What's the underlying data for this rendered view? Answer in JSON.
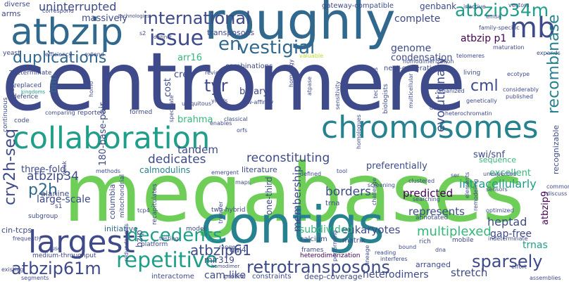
{
  "colors": {
    "background": "#ffffff",
    "palette": [
      "#440154",
      "#482878",
      "#3e4a89",
      "#31688e",
      "#26828e",
      "#1f9e89",
      "#35b779",
      "#6ece58",
      "#b5de2b"
    ]
  },
  "words": {
    "centromere": "centromere",
    "megabases": "megabases",
    "roughly": "roughly",
    "contigs": "contigs",
    "collaboration": "collaboration",
    "chromosomes": "chromosomes",
    "atbzip": "atbzip",
    "largest": "largest",
    "mb": "mb",
    "atbzip34m": "atbzip34m",
    "international": "international",
    "issue": "issue",
    "repetitive": "repetitive",
    "retrotransposons": "retrotransposons",
    "decedents": "decedents",
    "duplications": "duplications",
    "vestigial": "vestigial",
    "en": "en",
    "recombinase": "recombinase",
    "cry2h_seq": "cry2h-seq",
    "atbzip61m": "atbzip61m",
    "atbzip61": "atbzip61",
    "sparsely": "sparsely",
    "p2h": "p2h",
    "cml": "cml",
    "tyr": "tyr",
    "dedicates": "dedicates",
    "uninterrupted": "uninterrupted",
    "atbzip34": "atbzip34",
    "reconstituting": "reconstituting",
    "heptad": "heptad",
    "multiplexed": "multiplexed",
    "eukaryotes": "eukaryotes",
    "borders": "borders",
    "evolutionary": "evolutionary",
    "intracellularly": "intracellularly",
    "membership": "membership",
    "complete": "complete",
    "genome": "genome",
    "condensation": "condensation",
    "atbzip_p1": "atbzip p1",
    "atbzip9": "atbzip9",
    "recognizable": "recognizable",
    "tandem": "tandem",
    "brahma": "brahma",
    "predicted": "predicted",
    "represents": "represents",
    "subdivided": "subdivided",
    "initiative": "initiative",
    "large_scale": "large-scale",
    "three_fold": "three-fold",
    "calmodulins": "calmodulins",
    "cam_like": "cam-like",
    "stretch": "stretch",
    "heterodimers": "heterodimers",
    "trnas": "trnas",
    "gap_free": "gap-free",
    "swi_snf": "swi/snf",
    "excellent": "excellent",
    "preferentially": "preferentially",
    "sequence": "sequence",
    "arr16": "arr16",
    "cost": "cost",
    "cre": "cre",
    "transposons": "transposons",
    "genbank": "genbank",
    "gateway_compatible": "gateway-compatible",
    "next_generation": "next-generation",
    "combinations": "combinations",
    "binary": "binary",
    "one_third": "one-third",
    "base_pair_180": "180-base-pair",
    "mir319": "mir319",
    "gal4": "gal4",
    "bzip": "bzip",
    "columbia": "columbia",
    "alanine": "alanine",
    "brm": "brm",
    "cin_tcps": "cin-tcps",
    "s1": "s1",
    "subgroup": "subgroup",
    "literature": "literature",
    "trna": "trna",
    "constraints": "constraints",
    "deep_coverage": "deep-coverage",
    "arranged": "arranged",
    "interactome": "interactome",
    "medium_throughput": "medium-throughput",
    "segments": "segments",
    "existing": "existing",
    "continuous": "continuous",
    "prepared": "prepared",
    "defence": "defence",
    "determinate": "determinate",
    "replaced": "replaced",
    "yeast": "yeast",
    "arms": "arms",
    "diverse": "diverse",
    "correspond": "correspond",
    "massively": "massively",
    "efficiency": "efficiency",
    "extend": "extend",
    "technologies": "technologies",
    "homo": "homo",
    "kingdoms": "kingdoms",
    "code": "code",
    "comparing": "comparing",
    "frequently": "frequently",
    "fuse": "fuse",
    "weak": "weak",
    "methods": "methods",
    "mitochondrial": "mitochondrial",
    "recapitulates": "recapitulates",
    "emergent": "emergent",
    "two_hybrid": "two-hybrid",
    "tcp4": "tcp4",
    "platform": "platform",
    "testing": "testing",
    "redundancies": "redundancies",
    "model": "model",
    "range": "range",
    "homodimer": "homodimer",
    "proline": "proline",
    "calcium": "calcium",
    "frames": "frames",
    "matrix": "matrix",
    "lineage": "lineage",
    "reading": "reading",
    "bound": "bound",
    "rich": "rich",
    "dna": "dna",
    "mobile": "mobile",
    "indeterminate": "indeterminate",
    "effort": "effort",
    "assemblies": "assemblies",
    "heterodimerization": "heterodimerization",
    "interferes": "interferes",
    "performing": "performing",
    "annotated": "annotated",
    "optimized": "optimized",
    "discuss": "discuss",
    "common": "common",
    "sensors": "sensors",
    "ser": "ser",
    "unexpected": "unexpected",
    "clustered": "clustered",
    "searching": "searching",
    "screening": "screening",
    "defined": "defined",
    "heterochromatin": "heterochromatin",
    "density": "density",
    "published": "published",
    "considerably": "considerably",
    "genetically": "genetically",
    "organized": "organized",
    "living": "living",
    "ecotype": "ecotype",
    "multicellular": "multicellular",
    "homologues": "homologues",
    "biologists": "biologists",
    "techniques": "techniques",
    "sensitivity": "sensitivity",
    "atpase": "atpase",
    "homology": "homology",
    "telomeres": "telomeres",
    "maturation": "maturation",
    "expands": "expands",
    "homodimerization": "homodimerization",
    "inactive": "inactive",
    "emsa": "emsa",
    "vectors": "vectors",
    "family_specific": "family-specific",
    "valuable": "valuable",
    "review": "review",
    "low_affinity": "low-affinity",
    "ubiquitous": "ubiquitous",
    "yields": "yields",
    "classical": "classical",
    "enables": "enables",
    "orfs": "orfs",
    "formed": "formed",
    "reported": "reported",
    "speculate": "speculate",
    "protoplast": "protoplast",
    "distinct": "distinct",
    "s2": "s2",
    "tool": "tool",
    "maps": "maps",
    "transfer": "transfer",
    "challenge": "challenge",
    "elements": "elements",
    "remodeling": "remodeling"
  }
}
